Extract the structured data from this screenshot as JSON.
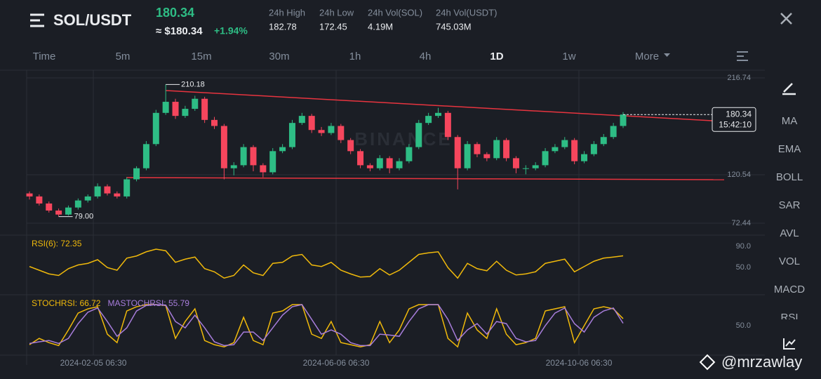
{
  "header": {
    "pair": "SOL/USDT",
    "price": "180.34",
    "price_usd": "≈ $180.34",
    "change": "+1.94%",
    "stats": [
      {
        "label": "24h High",
        "value": "182.78"
      },
      {
        "label": "24h Low",
        "value": "172.45"
      },
      {
        "label": "24h Vol(SOL)",
        "value": "4.19M"
      },
      {
        "label": "24h Vol(USDT)",
        "value": "745.03M"
      }
    ]
  },
  "timeframes": [
    "Time",
    "5m",
    "15m",
    "30m",
    "1h",
    "4h",
    "1D",
    "1w",
    "More"
  ],
  "active_timeframe": 6,
  "indicators": [
    "MA",
    "EMA",
    "BOLL",
    "SAR",
    "AVL",
    "VOL",
    "MACD",
    "RSI"
  ],
  "time_axis": [
    "2024-02-05 06:30",
    "2024-06-06 06:30",
    "2024-10-06 06:30"
  ],
  "watermark": "BINANCE",
  "credit": "@mrzawlay",
  "chart_data": [
    {
      "type": "candlestick",
      "up_color": "#2ebd85",
      "down_color": "#f6465d",
      "ylim": [
        64.08,
        222.3
      ],
      "yticks": [
        72.44,
        120.54,
        216.74
      ],
      "grid": true,
      "high_label": 210.18,
      "low_label": {
        "value": 79,
        "label": "79.00"
      },
      "last_price": 180.34,
      "countdown": "15:42:10",
      "candles": [
        [
          102,
          104,
          96,
          99
        ],
        [
          99,
          101,
          90,
          92
        ],
        [
          92,
          94,
          83,
          85
        ],
        [
          85,
          87,
          79,
          81
        ],
        [
          81,
          90,
          80,
          88
        ],
        [
          88,
          97,
          86,
          95
        ],
        [
          95,
          101,
          93,
          99
        ],
        [
          99,
          112,
          97,
          109
        ],
        [
          109,
          111,
          100,
          102
        ],
        [
          102,
          104,
          97,
          99
        ],
        [
          99,
          118,
          97,
          116
        ],
        [
          116,
          129,
          114,
          127
        ],
        [
          127,
          154,
          125,
          151
        ],
        [
          151,
          185,
          149,
          182
        ],
        [
          182,
          210.18,
          180,
          193
        ],
        [
          193,
          196,
          176,
          179
        ],
        [
          179,
          189,
          177,
          186
        ],
        [
          186,
          199,
          184,
          196
        ],
        [
          196,
          198,
          172,
          175
        ],
        [
          175,
          178,
          166,
          169
        ],
        [
          169,
          171,
          116,
          127
        ],
        [
          127,
          133,
          120,
          130
        ],
        [
          130,
          151,
          128,
          148
        ],
        [
          148,
          150,
          124,
          130
        ],
        [
          130,
          132,
          118,
          123
        ],
        [
          123,
          147,
          121,
          144
        ],
        [
          144,
          151,
          142,
          148
        ],
        [
          148,
          175,
          146,
          172
        ],
        [
          172,
          182,
          170,
          179
        ],
        [
          179,
          181,
          162,
          165
        ],
        [
          165,
          168,
          159,
          162
        ],
        [
          162,
          172,
          160,
          169
        ],
        [
          169,
          171,
          152,
          155
        ],
        [
          155,
          157,
          141,
          144
        ],
        [
          144,
          146,
          127,
          130
        ],
        [
          130,
          132,
          124,
          127
        ],
        [
          127,
          140,
          125,
          137
        ],
        [
          137,
          139,
          122,
          127
        ],
        [
          127,
          137,
          125,
          134
        ],
        [
          134,
          151,
          132,
          148
        ],
        [
          148,
          175,
          146,
          172
        ],
        [
          172,
          182,
          170,
          179
        ],
        [
          179,
          187,
          177,
          182
        ],
        [
          182,
          184,
          155,
          158
        ],
        [
          158,
          160,
          106,
          127
        ],
        [
          127,
          154,
          125,
          151
        ],
        [
          151,
          153,
          138,
          141
        ],
        [
          141,
          143,
          134,
          137
        ],
        [
          137,
          158,
          135,
          155
        ],
        [
          155,
          157,
          134,
          137
        ],
        [
          137,
          139,
          122,
          127
        ],
        [
          127,
          130,
          121,
          127
        ],
        [
          127,
          133,
          125,
          130
        ],
        [
          130,
          147,
          128,
          144
        ],
        [
          144,
          151,
          142,
          148
        ],
        [
          148,
          158,
          146,
          155
        ],
        [
          155,
          157,
          131,
          134
        ],
        [
          134,
          144,
          132,
          141
        ],
        [
          141,
          154,
          139,
          151
        ],
        [
          151,
          161,
          149,
          158
        ],
        [
          158,
          172,
          156,
          169
        ],
        [
          169,
          182.78,
          167,
          180.34
        ]
      ]
    },
    {
      "type": "line",
      "ylim": [
        5,
        105
      ],
      "yticks": [
        {
          "value": 90,
          "label": "90.0"
        },
        {
          "value": 50,
          "label": "50.0"
        }
      ],
      "series": [
        {
          "name": "RSI(6): 72.35",
          "color": "#f0b90b",
          "values": [
            52,
            45,
            38,
            35,
            48,
            55,
            58,
            65,
            50,
            45,
            68,
            72,
            80,
            85,
            82,
            60,
            66,
            70,
            48,
            42,
            30,
            35,
            55,
            40,
            35,
            58,
            60,
            72,
            75,
            55,
            52,
            60,
            45,
            38,
            32,
            33,
            48,
            36,
            45,
            60,
            75,
            78,
            80,
            50,
            30,
            58,
            48,
            44,
            62,
            45,
            36,
            38,
            42,
            58,
            62,
            66,
            42,
            52,
            62,
            68,
            70,
            72.35
          ]
        }
      ]
    },
    {
      "type": "line",
      "ylim": [
        -18,
        115
      ],
      "yticks": [
        {
          "value": 50,
          "label": "50.0"
        }
      ],
      "series": [
        {
          "name": "MASTOCHRSI: 55.79",
          "color": "#a77ddb",
          "values": [
            8,
            12,
            15,
            8,
            20,
            55,
            82,
            92,
            60,
            25,
            45,
            85,
            98,
            100,
            99,
            60,
            45,
            75,
            45,
            12,
            3,
            5,
            35,
            35,
            15,
            45,
            75,
            95,
            100,
            65,
            30,
            40,
            30,
            10,
            3,
            3,
            30,
            28,
            25,
            60,
            90,
            100,
            100,
            65,
            15,
            40,
            55,
            30,
            60,
            55,
            20,
            12,
            15,
            50,
            80,
            92,
            55,
            35,
            70,
            85,
            92,
            55.79
          ]
        },
        {
          "name": "STOCHRSI: 66.72",
          "color": "#f0b90b",
          "values": [
            5,
            20,
            10,
            3,
            40,
            80,
            90,
            95,
            30,
            10,
            85,
            95,
            100,
            100,
            98,
            20,
            60,
            90,
            15,
            5,
            0,
            10,
            70,
            15,
            5,
            80,
            85,
            100,
            100,
            30,
            20,
            60,
            10,
            5,
            0,
            5,
            60,
            10,
            40,
            90,
            100,
            100,
            100,
            20,
            0,
            80,
            40,
            20,
            90,
            30,
            5,
            10,
            20,
            85,
            90,
            95,
            10,
            50,
            90,
            95,
            90,
            66.72
          ]
        }
      ]
    }
  ]
}
